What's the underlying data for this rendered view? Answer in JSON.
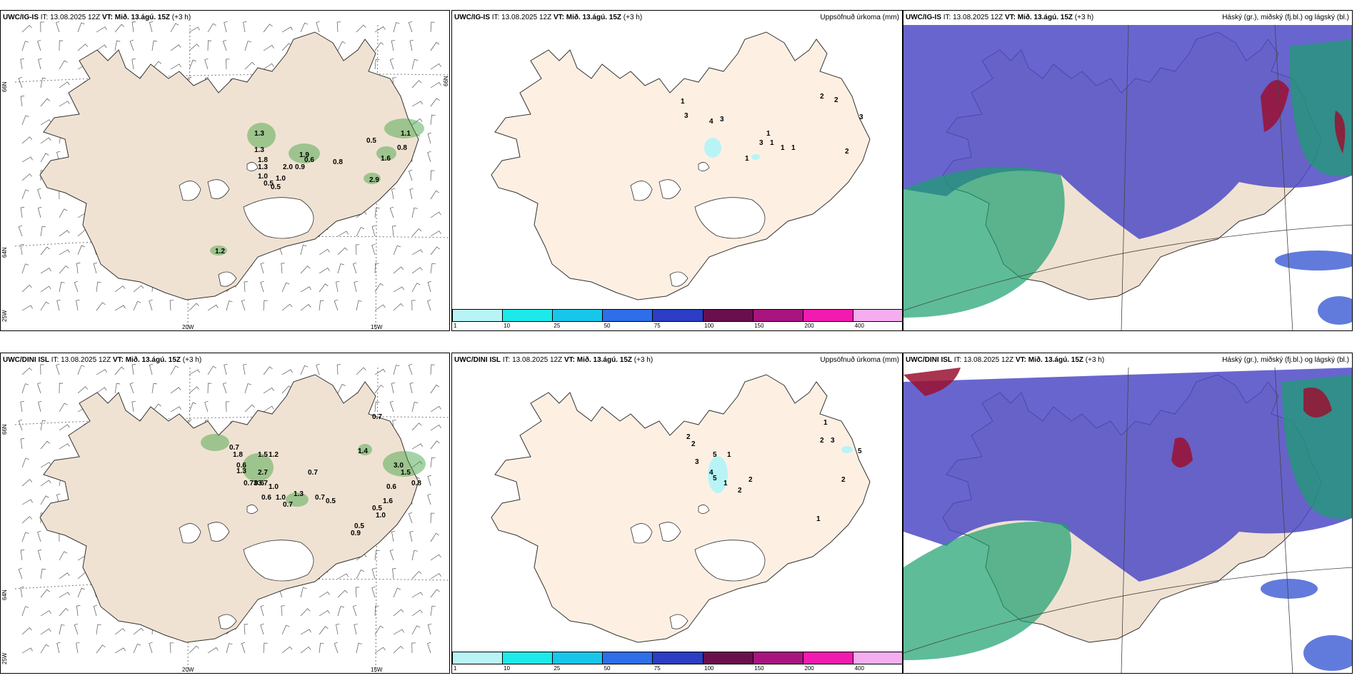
{
  "panels": {
    "r1c1": {
      "model": "UWC/IG-IS",
      "it_label": "IT:",
      "it_value": "13.08.2025 12Z",
      "vt_label": "VT:",
      "vt_value": "Mið. 13.ágú. 15Z",
      "lead": "(+3 h)",
      "right_title": ""
    },
    "r1c2": {
      "model": "UWC/IG-IS",
      "it_label": "IT:",
      "it_value": "13.08.2025 12Z",
      "vt_label": "VT:",
      "vt_value": "Mið. 13.ágú. 15Z",
      "lead": "(+3 h)",
      "right_title": "Uppsöfnuð úrkoma (mm)"
    },
    "r1c3": {
      "model": "UWC/IG-IS",
      "it_label": "IT:",
      "it_value": "13.08.2025 12Z",
      "vt_label": "VT:",
      "vt_value": "Mið. 13.ágú. 15Z",
      "lead": "(+3 h)",
      "right_title": "Háský (gr.), miðský (fj.bl.) og lágský (bl.)"
    },
    "r2c1": {
      "model": "UWC/DINI ISL",
      "it_label": "IT:",
      "it_value": "13.08.2025 12Z",
      "vt_label": "VT:",
      "vt_value": "Mið. 13.ágú. 15Z",
      "lead": "(+3 h)",
      "right_title": ""
    },
    "r2c2": {
      "model": "UWC/DINI ISL",
      "it_label": "IT:",
      "it_value": "13.08.2025 12Z",
      "vt_label": "VT:",
      "vt_value": "Mið. 13.ágú. 15Z",
      "lead": "(+3 h)",
      "right_title": "Uppsöfnuð úrkoma (mm)"
    },
    "r2c3": {
      "model": "UWC/DINI ISL",
      "it_label": "IT:",
      "it_value": "13.08.2025 12Z",
      "vt_label": "VT:",
      "vt_value": "Mið. 13.ágú. 15Z",
      "lead": "(+3 h)",
      "right_title": "Háský (gr.), miðský (fj.bl.) og lágský (bl.)"
    }
  },
  "axes": {
    "lat_66": "66N",
    "lat_64": "64N",
    "lon_20": "20W",
    "lon_15": "15W",
    "lon_25": "25W"
  },
  "colorbar": {
    "ticks": [
      "1",
      "10",
      "25",
      "50",
      "75",
      "100",
      "150",
      "200",
      "400"
    ],
    "colors": [
      "#b8f4f6",
      "#1ee9ea",
      "#18c6ea",
      "#2e6ee8",
      "#2b3ec4",
      "#6a0f4e",
      "#a8157f",
      "#f21bb0",
      "#f4aef0"
    ]
  },
  "wind_labels_r1": [
    "1.3",
    "1.3",
    "1.8",
    "1.3",
    "1.0",
    "0.5",
    "1.0",
    "0.5",
    "2.0",
    "0.9",
    "1.9",
    "0.6",
    "0.8",
    "0.5",
    "1.6",
    "0.8",
    "1.1",
    "2.9",
    "1.2"
  ],
  "wind_labels_r2": [
    "0.7",
    "1.8",
    "0.6",
    "1.3",
    "1.5",
    "1.2",
    "2.7",
    "0.73",
    "0.6",
    "1.0",
    "3.7",
    "0.7",
    "0.6",
    "1.0",
    "1.3",
    "0.7",
    "0.7",
    "0.5",
    "0.5",
    "0.9",
    "0.5",
    "1.0",
    "1.4",
    "0.7",
    "3.0",
    "0.6",
    "1.5",
    "0.8",
    "1.6"
  ],
  "precip_labels_r1": [
    "1",
    "3",
    "4",
    "3",
    "1",
    "3",
    "1",
    "1",
    "1",
    "1",
    "2",
    "2",
    "2",
    "3"
  ],
  "precip_labels_r2": [
    "2",
    "2",
    "3",
    "5",
    "1",
    "4",
    "5",
    "1",
    "2",
    "2",
    "1",
    "1",
    "2",
    "3",
    "2",
    "5"
  ],
  "colors": {
    "land": "#f0e2d2",
    "land_precip": "#fdf0e3",
    "high_cloud": "#1aa06e",
    "mid_cloud": "#5a55c8",
    "low_cloud": "#3a5ad4",
    "cumulus": "#9a1030",
    "glacier": "#ffffff"
  }
}
